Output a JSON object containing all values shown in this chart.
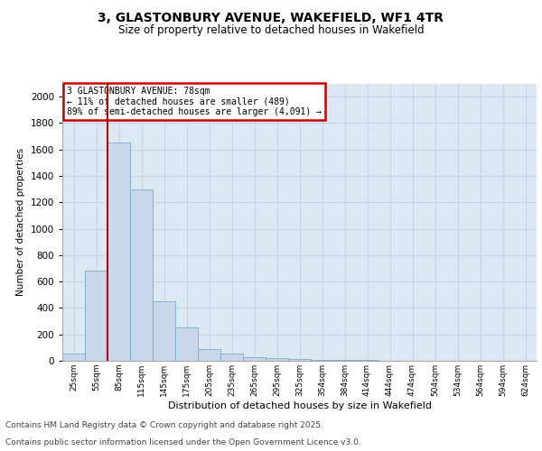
{
  "title_line1": "3, GLASTONBURY AVENUE, WAKEFIELD, WF1 4TR",
  "title_line2": "Size of property relative to detached houses in Wakefield",
  "xlabel": "Distribution of detached houses by size in Wakefield",
  "ylabel": "Number of detached properties",
  "categories": [
    "25sqm",
    "55sqm",
    "85sqm",
    "115sqm",
    "145sqm",
    "175sqm",
    "205sqm",
    "235sqm",
    "265sqm",
    "295sqm",
    "325sqm",
    "354sqm",
    "384sqm",
    "414sqm",
    "444sqm",
    "474sqm",
    "504sqm",
    "534sqm",
    "564sqm",
    "594sqm",
    "624sqm"
  ],
  "values": [
    55,
    680,
    1650,
    1300,
    450,
    250,
    90,
    55,
    30,
    18,
    12,
    8,
    5,
    4,
    3,
    3,
    2,
    2,
    2,
    1,
    2
  ],
  "bar_color": "#c8d8ea",
  "bar_edgecolor": "#7aaac8",
  "vline_x": 1.5,
  "vline_color": "#cc0000",
  "annotation_title": "3 GLASTONBURY AVENUE: 78sqm",
  "annotation_line1": "← 11% of detached houses are smaller (489)",
  "annotation_line2": "89% of semi-detached houses are larger (4,091) →",
  "annotation_box_edgecolor": "#cc0000",
  "ylim": [
    0,
    2100
  ],
  "yticks": [
    0,
    200,
    400,
    600,
    800,
    1000,
    1200,
    1400,
    1600,
    1800,
    2000
  ],
  "grid_color": "#c8d4e0",
  "axes_background": "#dce8f2",
  "footer_line1": "Contains HM Land Registry data © Crown copyright and database right 2025.",
  "footer_line2": "Contains public sector information licensed under the Open Government Licence v3.0.",
  "title_fontsize": 10,
  "subtitle_fontsize": 8.5,
  "footer_fontsize": 6.5
}
